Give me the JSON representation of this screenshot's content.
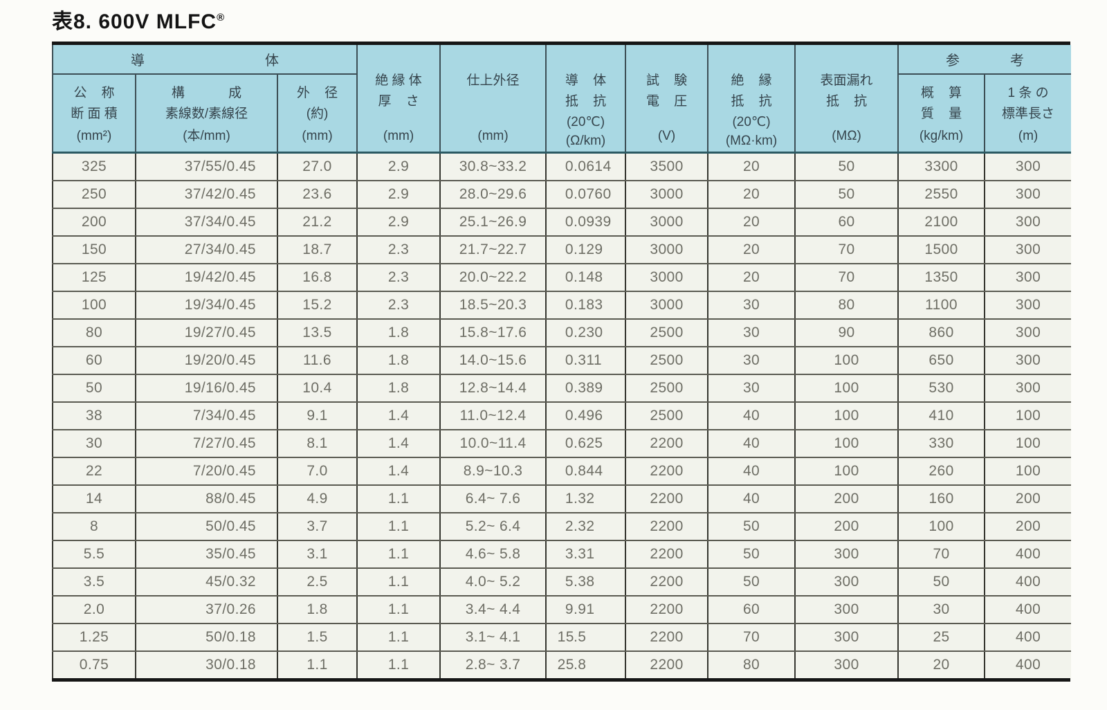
{
  "title": {
    "text": "表8. 600V MLFC",
    "registered_mark": "®"
  },
  "colors": {
    "header_bg": "#a9d8e3",
    "body_bg": "#f2f3ec",
    "page_bg": "#fcfcf9",
    "grid_dark": "#35352f",
    "row_line": "#5a5a51",
    "header_line": "#3c4e55",
    "header_accent": "#2c5a63",
    "frame": "#161616",
    "text_body": "#6e6e65",
    "text_header": "#36454d",
    "title_color": "#141414"
  },
  "table": {
    "header": {
      "group_conductor": "導体",
      "group_reference": "参考",
      "cols": {
        "nominal_area": {
          "lines": [
            "公    称",
            "断 面 積"
          ],
          "unit": "(mm²)"
        },
        "composition": {
          "lines": [
            "構            成",
            "素線数/素線径"
          ],
          "unit": "(本/mm)"
        },
        "outer_diameter": {
          "lines": [
            "外    径",
            "(約)"
          ],
          "unit": "(mm)"
        },
        "insulation_thickness": {
          "lines": [
            "絶 縁 体",
            "厚    さ"
          ],
          "unit": "(mm)"
        },
        "finished_diameter": {
          "lines": [
            "仕上外径"
          ],
          "unit": "(mm)"
        },
        "conductor_resistance": {
          "lines": [
            "導    体",
            "抵    抗",
            "(20℃)"
          ],
          "unit": "(Ω/km)"
        },
        "test_voltage": {
          "lines": [
            "試    験",
            "電    圧"
          ],
          "unit": "(V)"
        },
        "insulation_resistance": {
          "lines": [
            "絶    縁",
            "抵    抗",
            "(20℃)"
          ],
          "unit": "(MΩ·km)"
        },
        "surface_leakage_resistance": {
          "lines": [
            "表面漏れ",
            "抵    抗"
          ],
          "unit": "(MΩ)"
        },
        "approx_mass": {
          "lines": [
            "概    算",
            "質    量"
          ],
          "unit": "(kg/km)"
        },
        "standard_length": {
          "lines": [
            "1 条 の",
            "標準長さ"
          ],
          "unit": "(m)"
        }
      }
    },
    "col_keys": [
      "nominal_area",
      "composition",
      "outer_diameter",
      "insulation_thickness",
      "finished_diameter",
      "conductor_resistance",
      "test_voltage",
      "insulation_resistance",
      "surface_leakage_resistance",
      "approx_mass",
      "standard_length"
    ],
    "rows": [
      [
        "325",
        "37/55/0.45",
        "27.0",
        "2.9",
        "30.8~33.2",
        "0.0614",
        "3500",
        "20",
        "50",
        "3300",
        "300"
      ],
      [
        "250",
        "37/42/0.45",
        "23.6",
        "2.9",
        "28.0~29.6",
        "0.0760",
        "3000",
        "20",
        "50",
        "2550",
        "300"
      ],
      [
        "200",
        "37/34/0.45",
        "21.2",
        "2.9",
        "25.1~26.9",
        "0.0939",
        "3000",
        "20",
        "60",
        "2100",
        "300"
      ],
      [
        "150",
        "27/34/0.45",
        "18.7",
        "2.3",
        "21.7~22.7",
        "0.129",
        "3000",
        "20",
        "70",
        "1500",
        "300"
      ],
      [
        "125",
        "19/42/0.45",
        "16.8",
        "2.3",
        "20.0~22.2",
        "0.148",
        "3000",
        "20",
        "70",
        "1350",
        "300"
      ],
      [
        "100",
        "19/34/0.45",
        "15.2",
        "2.3",
        "18.5~20.3",
        "0.183",
        "3000",
        "30",
        "80",
        "1100",
        "300"
      ],
      [
        "80",
        "19/27/0.45",
        "13.5",
        "1.8",
        "15.8~17.6",
        "0.230",
        "2500",
        "30",
        "90",
        "860",
        "300"
      ],
      [
        "60",
        "19/20/0.45",
        "11.6",
        "1.8",
        "14.0~15.6",
        "0.311",
        "2500",
        "30",
        "100",
        "650",
        "300"
      ],
      [
        "50",
        "19/16/0.45",
        "10.4",
        "1.8",
        "12.8~14.4",
        "0.389",
        "2500",
        "30",
        "100",
        "530",
        "300"
      ],
      [
        "38",
        "7/34/0.45",
        "9.1",
        "1.4",
        "11.0~12.4",
        "0.496",
        "2500",
        "40",
        "100",
        "410",
        "100"
      ],
      [
        "30",
        "7/27/0.45",
        "8.1",
        "1.4",
        "10.0~11.4",
        "0.625",
        "2200",
        "40",
        "100",
        "330",
        "100"
      ],
      [
        "22",
        "7/20/0.45",
        "7.0",
        "1.4",
        "8.9~10.3",
        "0.844",
        "2200",
        "40",
        "100",
        "260",
        "100"
      ],
      [
        "14",
        "88/0.45",
        "4.9",
        "1.1",
        "6.4~ 7.6",
        "1.32",
        "2200",
        "40",
        "200",
        "160",
        "200"
      ],
      [
        "8",
        "50/0.45",
        "3.7",
        "1.1",
        "5.2~ 6.4",
        "2.32",
        "2200",
        "50",
        "200",
        "100",
        "200"
      ],
      [
        "5.5",
        "35/0.45",
        "3.1",
        "1.1",
        "4.6~ 5.8",
        "3.31",
        "2200",
        "50",
        "300",
        "70",
        "400"
      ],
      [
        "3.5",
        "45/0.32",
        "2.5",
        "1.1",
        "4.0~ 5.2",
        "5.38",
        "2200",
        "50",
        "300",
        "50",
        "400"
      ],
      [
        "2.0",
        "37/0.26",
        "1.8",
        "1.1",
        "3.4~ 4.4",
        "9.91",
        "2200",
        "60",
        "300",
        "30",
        "400"
      ],
      [
        "1.25",
        "50/0.18",
        "1.5",
        "1.1",
        "3.1~ 4.1",
        "15.5",
        "2200",
        "70",
        "300",
        "25",
        "400"
      ],
      [
        "0.75",
        "30/0.18",
        "1.1",
        "1.1",
        "2.8~ 3.7",
        "25.8",
        "2200",
        "80",
        "300",
        "20",
        "400"
      ]
    ]
  }
}
